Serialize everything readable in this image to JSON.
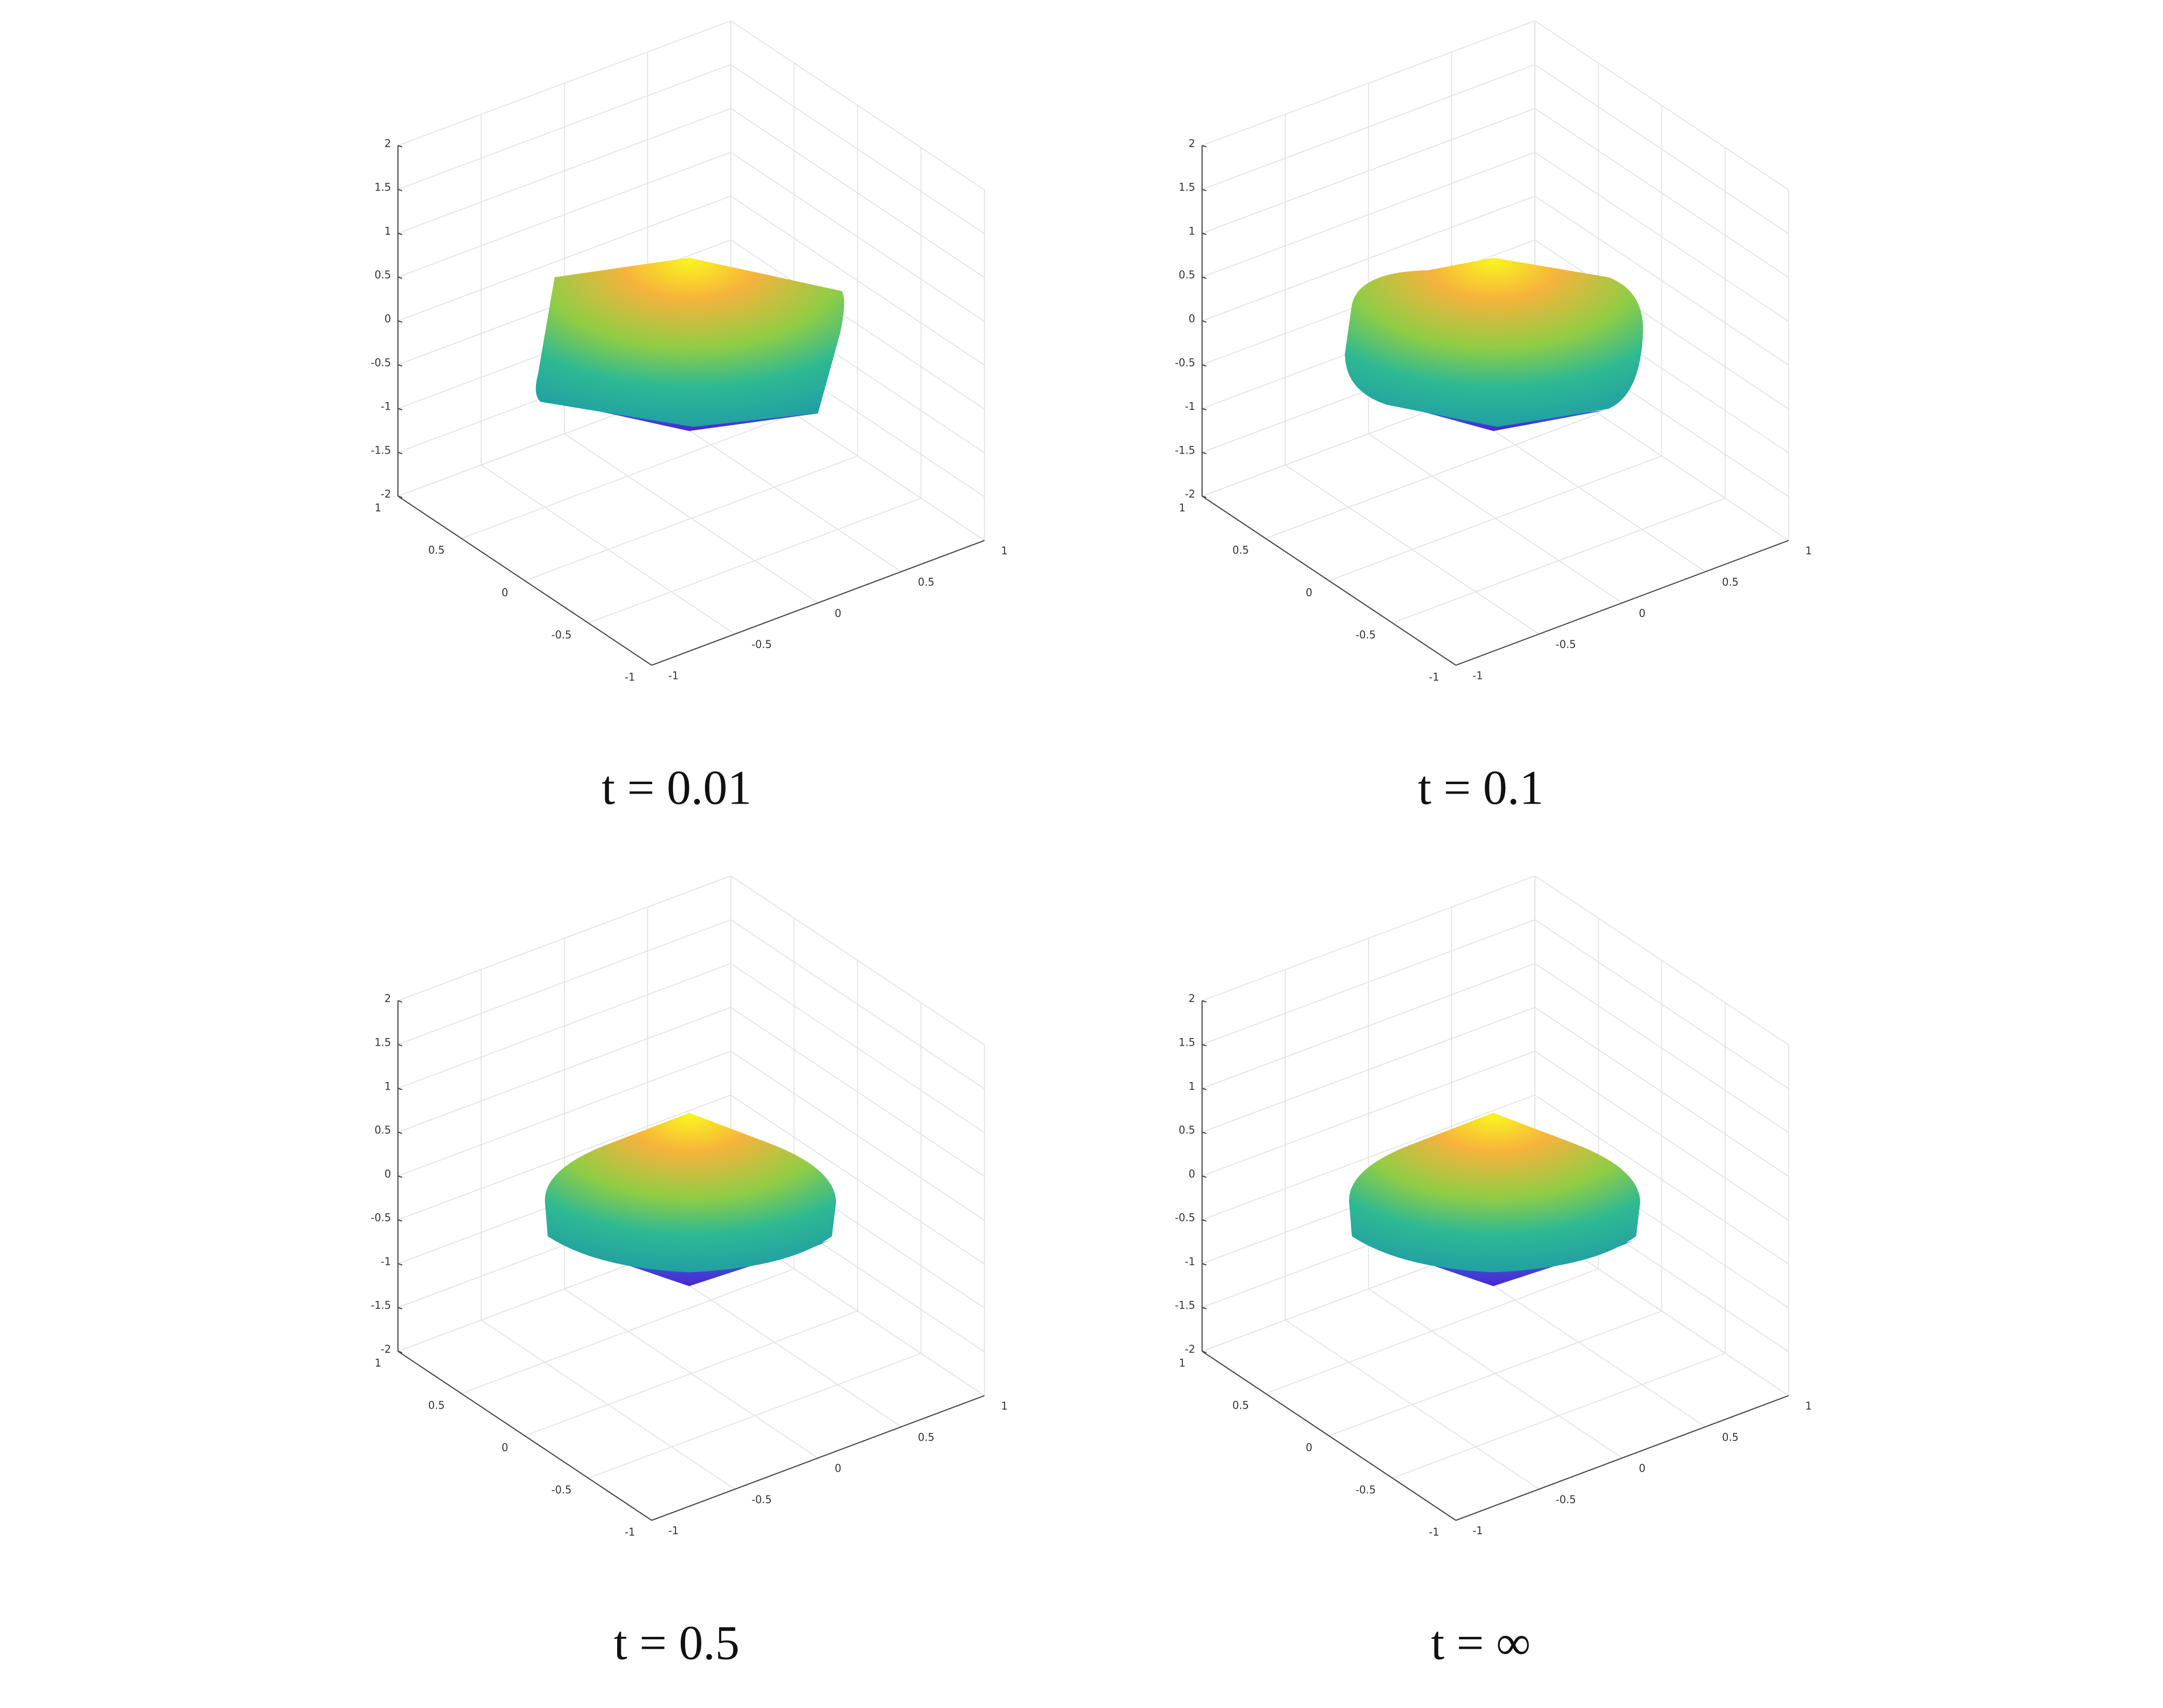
{
  "axes": {
    "xlim": [
      -1,
      1
    ],
    "ylim": [
      -1,
      1
    ],
    "zlim": [
      -2,
      2
    ],
    "xticks": [
      -1,
      -0.5,
      0,
      0.5,
      1
    ],
    "yticks": [
      -1,
      -0.5,
      0,
      0.5,
      1
    ],
    "zticks": [
      -2,
      -1.5,
      -1,
      -0.5,
      0,
      0.5,
      1,
      1.5,
      2
    ]
  },
  "panels": [
    {
      "caption": "t = 0.01"
    },
    {
      "caption": "t = 0.1"
    },
    {
      "caption": "t = 0.5"
    },
    {
      "caption": "t = ∞"
    }
  ]
}
